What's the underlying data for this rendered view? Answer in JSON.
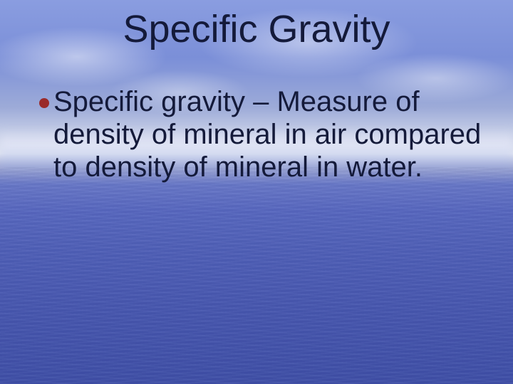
{
  "slide": {
    "title": "Specific Gravity",
    "title_fontsize": 54,
    "title_color": "#141a3a",
    "bullets": [
      {
        "text": "Specific gravity – Measure of density of mineral in air compared to density of mineral in water.",
        "fontsize": 40,
        "text_color": "#141a3a",
        "dot_color": "#9a2a2a",
        "dot_size": 14
      }
    ],
    "background": {
      "sky_top": "#8a9de0",
      "horizon": "#e0e4f0",
      "water_top": "#6878c8",
      "water_bottom": "#4050a8"
    }
  }
}
